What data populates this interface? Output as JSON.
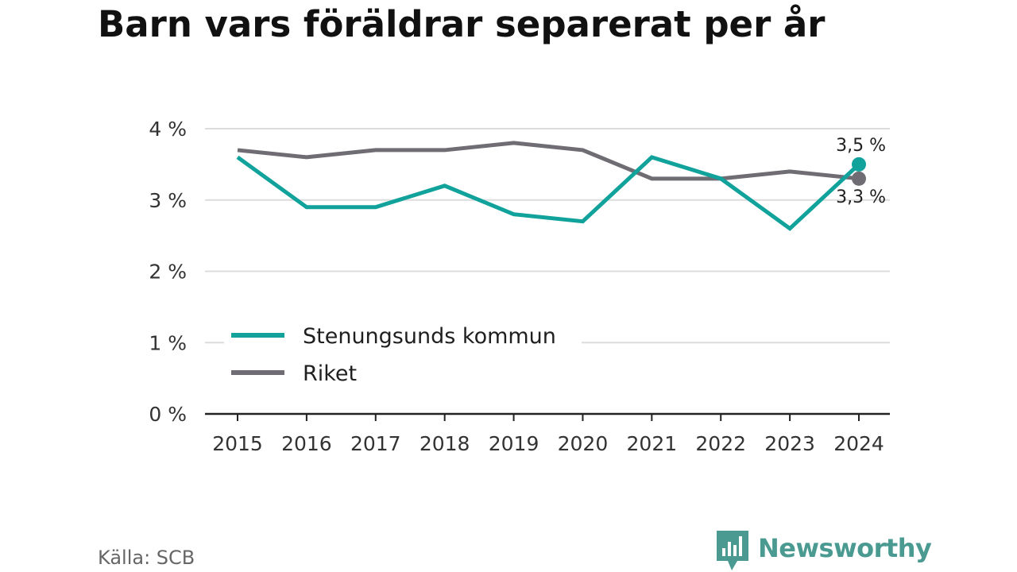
{
  "title": "Barn vars föräldrar separerat per år",
  "source": "Källa: SCB",
  "brand": {
    "name": "Newsworthy",
    "color": "#4a9a91"
  },
  "chart_data": {
    "type": "line",
    "title": "Barn vars föräldrar separerat per år",
    "xlabel": "",
    "ylabel": "",
    "x": [
      "2015",
      "2016",
      "2017",
      "2018",
      "2019",
      "2020",
      "2021",
      "2022",
      "2023",
      "2024"
    ],
    "y_ticks": [
      {
        "value": 0,
        "label": "0 %"
      },
      {
        "value": 1,
        "label": "1 %"
      },
      {
        "value": 2,
        "label": "2 %"
      },
      {
        "value": 3,
        "label": "3 %"
      },
      {
        "value": 4,
        "label": "4 %"
      }
    ],
    "ylim": [
      0,
      4
    ],
    "grid": true,
    "legend": "lower-left",
    "series": [
      {
        "name": "Stenungsunds kommun",
        "color": "#10a29b",
        "values": [
          3.6,
          2.9,
          2.9,
          3.2,
          2.8,
          2.7,
          3.6,
          3.3,
          2.6,
          3.5
        ],
        "end_label": "3,5 %"
      },
      {
        "name": "Riket",
        "color": "#6f6d73",
        "values": [
          3.7,
          3.6,
          3.7,
          3.7,
          3.8,
          3.7,
          3.3,
          3.3,
          3.4,
          3.3
        ],
        "end_label": "3,3 %"
      }
    ]
  }
}
